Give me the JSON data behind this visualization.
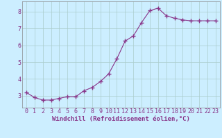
{
  "x": [
    0,
    1,
    2,
    3,
    4,
    5,
    6,
    7,
    8,
    9,
    10,
    11,
    12,
    13,
    14,
    15,
    16,
    17,
    18,
    19,
    20,
    21,
    22,
    23
  ],
  "y": [
    3.2,
    2.9,
    2.75,
    2.75,
    2.85,
    2.95,
    2.95,
    3.3,
    3.5,
    3.85,
    4.3,
    5.2,
    6.25,
    6.55,
    7.35,
    8.05,
    8.2,
    7.75,
    7.6,
    7.5,
    7.45,
    7.45,
    7.45,
    7.45
  ],
  "line_color": "#883388",
  "marker": "+",
  "marker_size": 4,
  "background_color": "#cceeff",
  "grid_color": "#aacccc",
  "xlabel": "Windchill (Refroidissement éolien,°C)",
  "xlabel_color": "#883388",
  "xlabel_fontsize": 6.5,
  "tick_color": "#883388",
  "tick_fontsize": 6,
  "xlim": [
    -0.5,
    23.5
  ],
  "ylim": [
    2.3,
    8.6
  ],
  "yticks": [
    3,
    4,
    5,
    6,
    7,
    8
  ],
  "xticks": [
    0,
    1,
    2,
    3,
    4,
    5,
    6,
    7,
    8,
    9,
    10,
    11,
    12,
    13,
    14,
    15,
    16,
    17,
    18,
    19,
    20,
    21,
    22,
    23
  ]
}
